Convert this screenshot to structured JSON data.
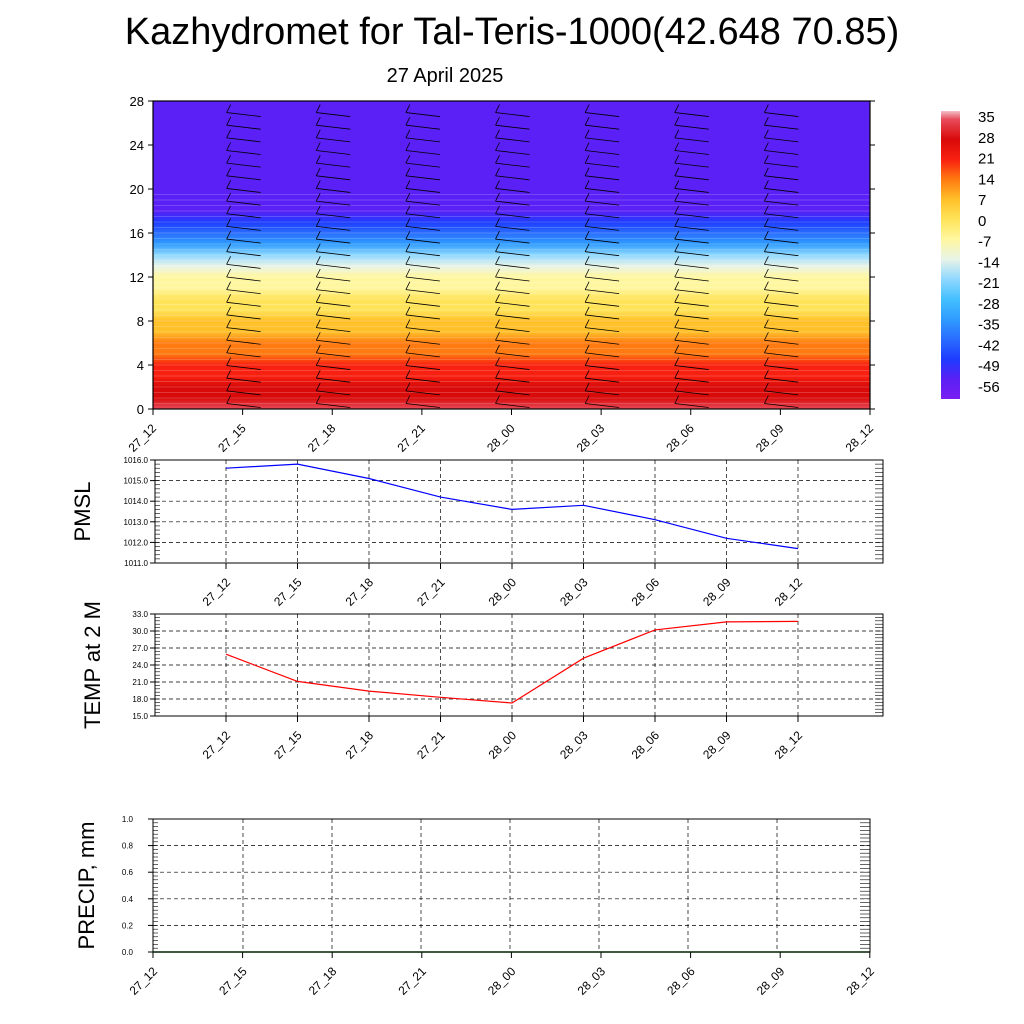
{
  "header": {
    "title": "Kazhydromet for Tal-Teris-1000(42.648 70.85)",
    "subtitle": "27 April 2025"
  },
  "colors": {
    "pmsl_line": "#0000ff",
    "temp_line": "#ff0000",
    "precip_line": "#006400",
    "grid": "#000000"
  },
  "chart_data": [
    {
      "type": "heatmap",
      "title": "",
      "xlabel": "",
      "ylabel": "",
      "x_ticks": [
        "27_12",
        "27_15",
        "27_18",
        "27_21",
        "28_00",
        "28_03",
        "28_06",
        "28_09",
        "28_12"
      ],
      "y_ticks": [
        0,
        4,
        8,
        12,
        16,
        20,
        24,
        28
      ],
      "ylim": [
        0,
        28
      ],
      "variable": "temperature",
      "temperature_profile": {
        "levels": [
          0,
          1,
          2,
          3,
          4,
          5,
          6,
          7,
          8,
          9,
          10,
          11,
          12,
          13,
          14,
          15,
          16,
          17,
          18,
          19,
          20,
          22,
          24,
          26,
          28
        ],
        "values": [
          30,
          24,
          22,
          19,
          16,
          13,
          10,
          7,
          4,
          0,
          -4,
          -8,
          -12,
          -19,
          -27,
          -35,
          -44,
          -52,
          -58,
          -60,
          -60,
          -60,
          -60,
          -60,
          -60
        ]
      },
      "colorbar": {
        "labels": [
          "35",
          "28",
          "21",
          "14",
          "7",
          "0",
          "-7",
          "-14",
          "-21",
          "-28",
          "-35",
          "-42",
          "-49",
          "-56"
        ],
        "range": [
          -63,
          38
        ],
        "stops": [
          {
            "value": -63,
            "color": "#7a1ef2"
          },
          {
            "value": -56,
            "color": "#5a20f5"
          },
          {
            "value": -49,
            "color": "#1e3cff"
          },
          {
            "value": -42,
            "color": "#2a6dff"
          },
          {
            "value": -35,
            "color": "#2f9cff"
          },
          {
            "value": -28,
            "color": "#44c0ff"
          },
          {
            "value": -21,
            "color": "#8fd8ff"
          },
          {
            "value": -14,
            "color": "#e8f4e8"
          },
          {
            "value": -7,
            "color": "#fff7a0"
          },
          {
            "value": 0,
            "color": "#ffe45a"
          },
          {
            "value": 7,
            "color": "#ffc02a"
          },
          {
            "value": 14,
            "color": "#ff7a10"
          },
          {
            "value": 21,
            "color": "#f82010"
          },
          {
            "value": 28,
            "color": "#d80a0a"
          },
          {
            "value": 35,
            "color": "#e84a5a"
          },
          {
            "value": 38,
            "color": "#f3c0c8"
          }
        ]
      },
      "overlay": "wind barbs"
    },
    {
      "type": "line",
      "ylabel": "PMSL",
      "categories": [
        "27_12",
        "27_15",
        "27_18",
        "27_21",
        "28_00",
        "28_03",
        "28_06",
        "28_09",
        "28_12"
      ],
      "ylim": [
        1011.0,
        1016.0
      ],
      "y_ticks": [
        "1011.0",
        "1012.0",
        "1013.0",
        "1014.0",
        "1015.0",
        "1016.0"
      ],
      "series": [
        {
          "values": [
            1015.6,
            1015.8,
            1015.1,
            1014.2,
            1013.6,
            1013.8,
            1013.1,
            1012.2,
            1011.7
          ]
        }
      ]
    },
    {
      "type": "line",
      "ylabel": "TEMP at 2 M",
      "categories": [
        "27_12",
        "27_15",
        "27_18",
        "27_21",
        "28_00",
        "28_03",
        "28_06",
        "28_09",
        "28_12"
      ],
      "ylim": [
        15.0,
        33.0
      ],
      "y_ticks": [
        "15.0",
        "18.0",
        "21.0",
        "24.0",
        "27.0",
        "30.0",
        "33.0"
      ],
      "series": [
        {
          "values": [
            25.9,
            21.1,
            19.4,
            18.3,
            17.3,
            25.2,
            30.2,
            31.6,
            31.7
          ]
        }
      ]
    },
    {
      "type": "line",
      "ylabel": "PRECIP, mm",
      "categories": [
        "27_12",
        "27_15",
        "27_18",
        "27_21",
        "28_00",
        "28_03",
        "28_06",
        "28_09",
        "28_12"
      ],
      "ylim": [
        0.0,
        1.0
      ],
      "y_ticks": [
        "0.0",
        "0.2",
        "0.4",
        "0.6",
        "0.8",
        "1.0"
      ],
      "series": [
        {
          "values": [
            0.0,
            0.0,
            0.0,
            0.0,
            0.0,
            0.0,
            0.0,
            0.0,
            0.0
          ]
        }
      ]
    }
  ]
}
